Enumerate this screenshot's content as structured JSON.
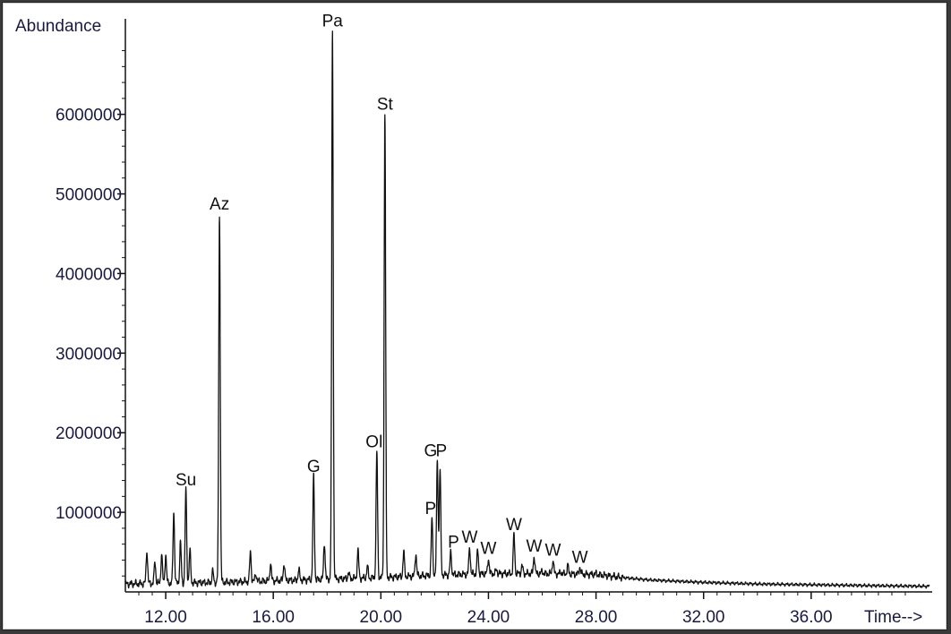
{
  "chart_data": {
    "type": "line",
    "ylabel": "Abundance",
    "xlabel": "Time-->",
    "xlim": [
      10.5,
      40.5
    ],
    "ylim": [
      0,
      7200000
    ],
    "grid": false,
    "xticks": [
      {
        "value": 12,
        "label": "12.00"
      },
      {
        "value": 16,
        "label": "16.00"
      },
      {
        "value": 20,
        "label": "20.00"
      },
      {
        "value": 24,
        "label": "24.00"
      },
      {
        "value": 28,
        "label": "28.00"
      },
      {
        "value": 32,
        "label": "32.00"
      },
      {
        "value": 36,
        "label": "36.00"
      }
    ],
    "yticks": [
      {
        "value": 1000000,
        "label": "1000000"
      },
      {
        "value": 2000000,
        "label": "2000000"
      },
      {
        "value": 3000000,
        "label": "3000000"
      },
      {
        "value": 4000000,
        "label": "4000000"
      },
      {
        "value": 5000000,
        "label": "5000000"
      },
      {
        "value": 6000000,
        "label": "6000000"
      }
    ],
    "baseline": [
      [
        10.5,
        100000
      ],
      [
        12,
        110000
      ],
      [
        14,
        120000
      ],
      [
        16,
        140000
      ],
      [
        18,
        160000
      ],
      [
        20,
        180000
      ],
      [
        22,
        210000
      ],
      [
        24,
        230000
      ],
      [
        26,
        230000
      ],
      [
        28,
        220000
      ],
      [
        29,
        180000
      ],
      [
        30,
        150000
      ],
      [
        32,
        120000
      ],
      [
        34,
        100000
      ],
      [
        36,
        90000
      ],
      [
        38,
        80000
      ],
      [
        40.5,
        70000
      ]
    ],
    "series": [
      {
        "values": [
          {
            "x": 11.3,
            "y": 520000
          },
          {
            "x": 11.6,
            "y": 380000
          },
          {
            "x": 11.85,
            "y": 470000
          },
          {
            "x": 12.0,
            "y": 460000
          },
          {
            "x": 12.3,
            "y": 1000000
          },
          {
            "x": 12.55,
            "y": 620000
          },
          {
            "x": 12.75,
            "y": 1280000
          },
          {
            "x": 12.9,
            "y": 520000
          },
          {
            "x": 13.75,
            "y": 260000
          },
          {
            "x": 14.0,
            "y": 4750000
          },
          {
            "x": 15.15,
            "y": 500000
          },
          {
            "x": 15.35,
            "y": 230000
          },
          {
            "x": 15.9,
            "y": 360000
          },
          {
            "x": 16.4,
            "y": 360000
          },
          {
            "x": 16.95,
            "y": 280000
          },
          {
            "x": 17.5,
            "y": 1450000
          },
          {
            "x": 17.9,
            "y": 620000
          },
          {
            "x": 18.2,
            "y": 7050000
          },
          {
            "x": 18.8,
            "y": 240000
          },
          {
            "x": 19.15,
            "y": 520000
          },
          {
            "x": 19.5,
            "y": 320000
          },
          {
            "x": 19.85,
            "y": 1760000
          },
          {
            "x": 20.15,
            "y": 6000000
          },
          {
            "x": 20.85,
            "y": 500000
          },
          {
            "x": 21.3,
            "y": 480000
          },
          {
            "x": 21.9,
            "y": 920000
          },
          {
            "x": 22.1,
            "y": 1650000
          },
          {
            "x": 22.2,
            "y": 1540000
          },
          {
            "x": 22.6,
            "y": 500000
          },
          {
            "x": 23.3,
            "y": 560000
          },
          {
            "x": 23.6,
            "y": 520000
          },
          {
            "x": 24.0,
            "y": 420000
          },
          {
            "x": 24.3,
            "y": 280000
          },
          {
            "x": 24.95,
            "y": 720000
          },
          {
            "x": 25.25,
            "y": 330000
          },
          {
            "x": 25.7,
            "y": 450000
          },
          {
            "x": 26.0,
            "y": 260000
          },
          {
            "x": 26.4,
            "y": 400000
          },
          {
            "x": 26.7,
            "y": 250000
          },
          {
            "x": 26.95,
            "y": 330000
          },
          {
            "x": 27.4,
            "y": 310000
          },
          {
            "x": 28.0,
            "y": 230000
          }
        ]
      }
    ],
    "annotations": [
      {
        "text": "Su",
        "x": 12.75,
        "y": 1280000
      },
      {
        "text": "Az",
        "x": 14.0,
        "y": 4750000
      },
      {
        "text": "G",
        "x": 17.5,
        "y": 1450000
      },
      {
        "text": "Pa",
        "x": 18.2,
        "y": 7050000
      },
      {
        "text": "Ol",
        "x": 19.75,
        "y": 1760000
      },
      {
        "text": "St",
        "x": 20.15,
        "y": 6000000
      },
      {
        "text": "G",
        "x": 21.85,
        "y": 1650000
      },
      {
        "text": "P",
        "x": 22.25,
        "y": 1650000
      },
      {
        "text": "P",
        "x": 21.85,
        "y": 920000
      },
      {
        "text": "P",
        "x": 22.7,
        "y": 500000
      },
      {
        "text": "W",
        "x": 23.3,
        "y": 560000
      },
      {
        "text": "W",
        "x": 24.0,
        "y": 420000
      },
      {
        "text": "W",
        "x": 24.95,
        "y": 720000
      },
      {
        "text": "W",
        "x": 25.7,
        "y": 450000
      },
      {
        "text": "W",
        "x": 26.4,
        "y": 400000
      },
      {
        "text": "W",
        "x": 27.4,
        "y": 310000
      }
    ]
  }
}
